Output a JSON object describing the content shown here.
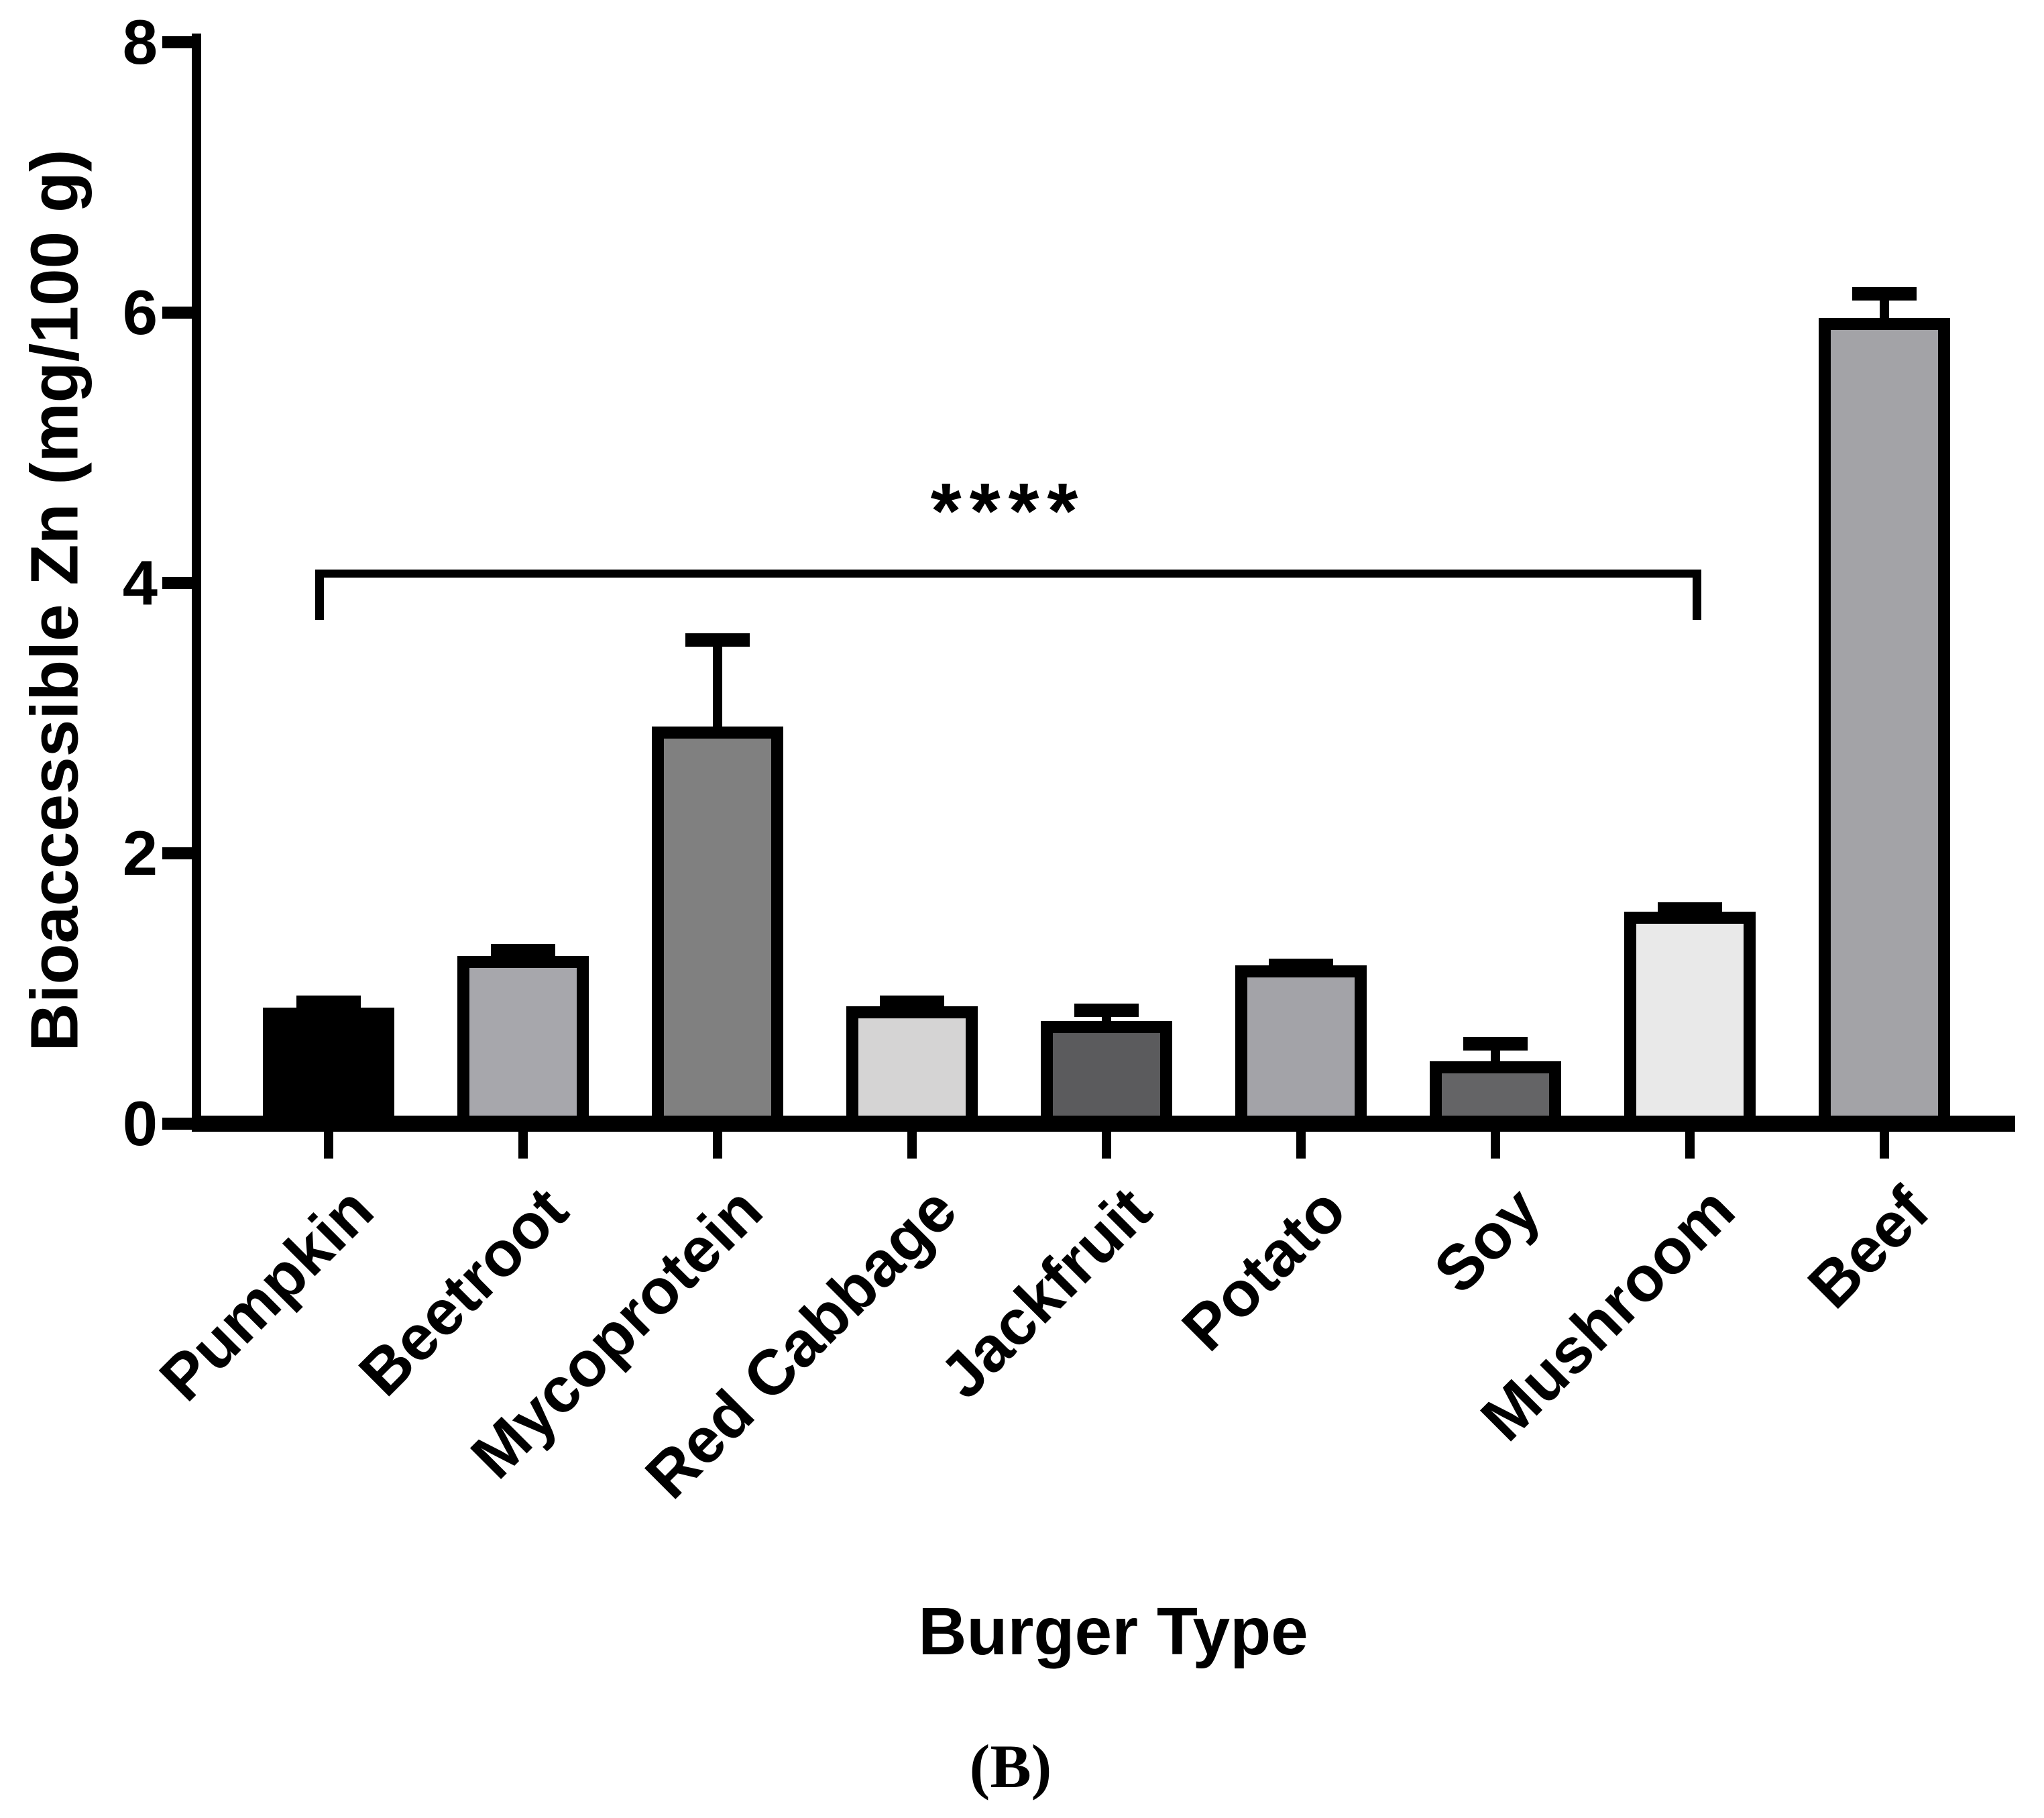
{
  "figure": {
    "panel_label": "(B)"
  },
  "chart_data": {
    "type": "bar",
    "title": "",
    "xlabel": "Burger Type",
    "ylabel": "Bioaccessible Zn (mg/100 g)",
    "ylim": [
      0,
      8
    ],
    "yticks": [
      0,
      2,
      4,
      6,
      8
    ],
    "grid": false,
    "legend": "none",
    "categories": [
      "Pumpkin",
      "Beetroot",
      "Mycoprotein",
      "Red Cabbage",
      "Jackfruit",
      "Potato",
      "Soy",
      "Mushroom",
      "Beef"
    ],
    "series": [
      {
        "name": "Bioaccessible Zn",
        "values": [
          0.86,
          1.24,
          2.94,
          0.87,
          0.76,
          1.17,
          0.46,
          1.57,
          5.96
        ],
        "errors_plus": [
          0.09,
          0.09,
          0.69,
          0.08,
          0.13,
          0.05,
          0.18,
          0.07,
          0.23
        ]
      }
    ],
    "bar_colors": [
      "#000000",
      "#a7a7ac",
      "#808080",
      "#d5d4d4",
      "#5b5b5d",
      "#a3a3a8",
      "#646466",
      "#e9e9e9",
      "#a3a3a7"
    ],
    "bar_border_color": "#000000",
    "annotation": {
      "text": "****",
      "from_category": "Pumpkin",
      "to_category": "Mushroom",
      "y_value": 4.1
    }
  }
}
